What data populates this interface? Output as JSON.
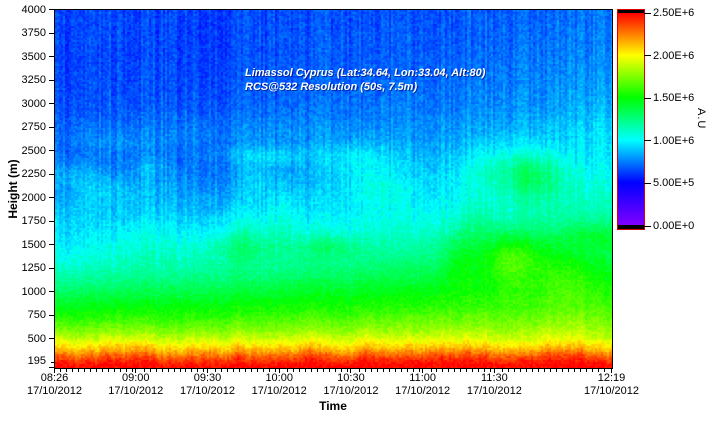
{
  "figure": {
    "background": "#ffffff"
  },
  "chart_data": {
    "type": "heatmap",
    "annotation_lines": [
      "Limassol Cyprus (Lat:34.64, Lon:33.04, Alt:80)",
      "RCS@532 Resolution (50s, 7.5m)"
    ],
    "xlabel": "Time",
    "ylabel": "Height (m)",
    "colorbar_unit_label": "A.U",
    "x_range_minutes": [
      506,
      739
    ],
    "x_ticks": [
      {
        "label": "08:26",
        "date": "17/10/2012",
        "minutes": 506
      },
      {
        "label": "09:00",
        "date": "17/10/2012",
        "minutes": 540
      },
      {
        "label": "09:30",
        "date": "17/10/2012",
        "minutes": 570
      },
      {
        "label": "10:00",
        "date": "17/10/2012",
        "minutes": 600
      },
      {
        "label": "10:30",
        "date": "17/10/2012",
        "minutes": 630
      },
      {
        "label": "11:00",
        "date": "17/10/2012",
        "minutes": 660
      },
      {
        "label": "11:30",
        "date": "17/10/2012",
        "minutes": 690
      },
      {
        "label": "12:19",
        "date": "17/10/2012",
        "minutes": 739
      }
    ],
    "x_minor_tick_step_minutes": 2.5,
    "y_range": [
      195,
      4000
    ],
    "y_ticks": [
      4000,
      3750,
      3500,
      3250,
      3000,
      2750,
      2500,
      2250,
      2000,
      1750,
      1500,
      1250,
      1000,
      750,
      500,
      195
    ],
    "y_minor_ticks": [
      250
    ],
    "colorbar": {
      "range": [
        0,
        2500000
      ],
      "ticks": [
        {
          "label": "2.50E+6",
          "value": 2500000
        },
        {
          "label": "2.00E+6",
          "value": 2000000
        },
        {
          "label": "1.50E+6",
          "value": 1500000
        },
        {
          "label": "1.00E+6",
          "value": 1000000
        },
        {
          "label": "5.00E+5",
          "value": 500000
        },
        {
          "label": "0.00E+0",
          "value": 0
        }
      ],
      "border_color": "#dd0000",
      "end_cap_color": "#000000"
    },
    "colormap_stops": [
      [
        0.0,
        "#8000ff"
      ],
      [
        0.2,
        "#0000ff"
      ],
      [
        0.4,
        "#00ffff"
      ],
      [
        0.6,
        "#00ff00"
      ],
      [
        0.8,
        "#ffff00"
      ],
      [
        1.0,
        "#ff0000"
      ]
    ],
    "profile_height_m_vs_value_au": [
      [
        195,
        2500000
      ],
      [
        250,
        2450000
      ],
      [
        300,
        2350000
      ],
      [
        350,
        2230000
      ],
      [
        400,
        2110000
      ],
      [
        450,
        2010000
      ],
      [
        500,
        1910000
      ],
      [
        600,
        1760000
      ],
      [
        750,
        1600000
      ],
      [
        900,
        1480000
      ],
      [
        1000,
        1400000
      ],
      [
        1250,
        1220000
      ],
      [
        1500,
        1080000
      ],
      [
        1750,
        960000
      ],
      [
        2000,
        870000
      ],
      [
        2250,
        800000
      ],
      [
        2500,
        750000
      ],
      [
        2750,
        720000
      ],
      [
        3000,
        690000
      ],
      [
        3500,
        660000
      ],
      [
        4000,
        640000
      ]
    ],
    "boundary_layer_rise": {
      "left_scale": 1.24,
      "right_scale": 0.62,
      "anchor_height_m": 500
    },
    "aerosol_layer": {
      "center_height_m": 2720,
      "half_width_m": 130
    }
  }
}
